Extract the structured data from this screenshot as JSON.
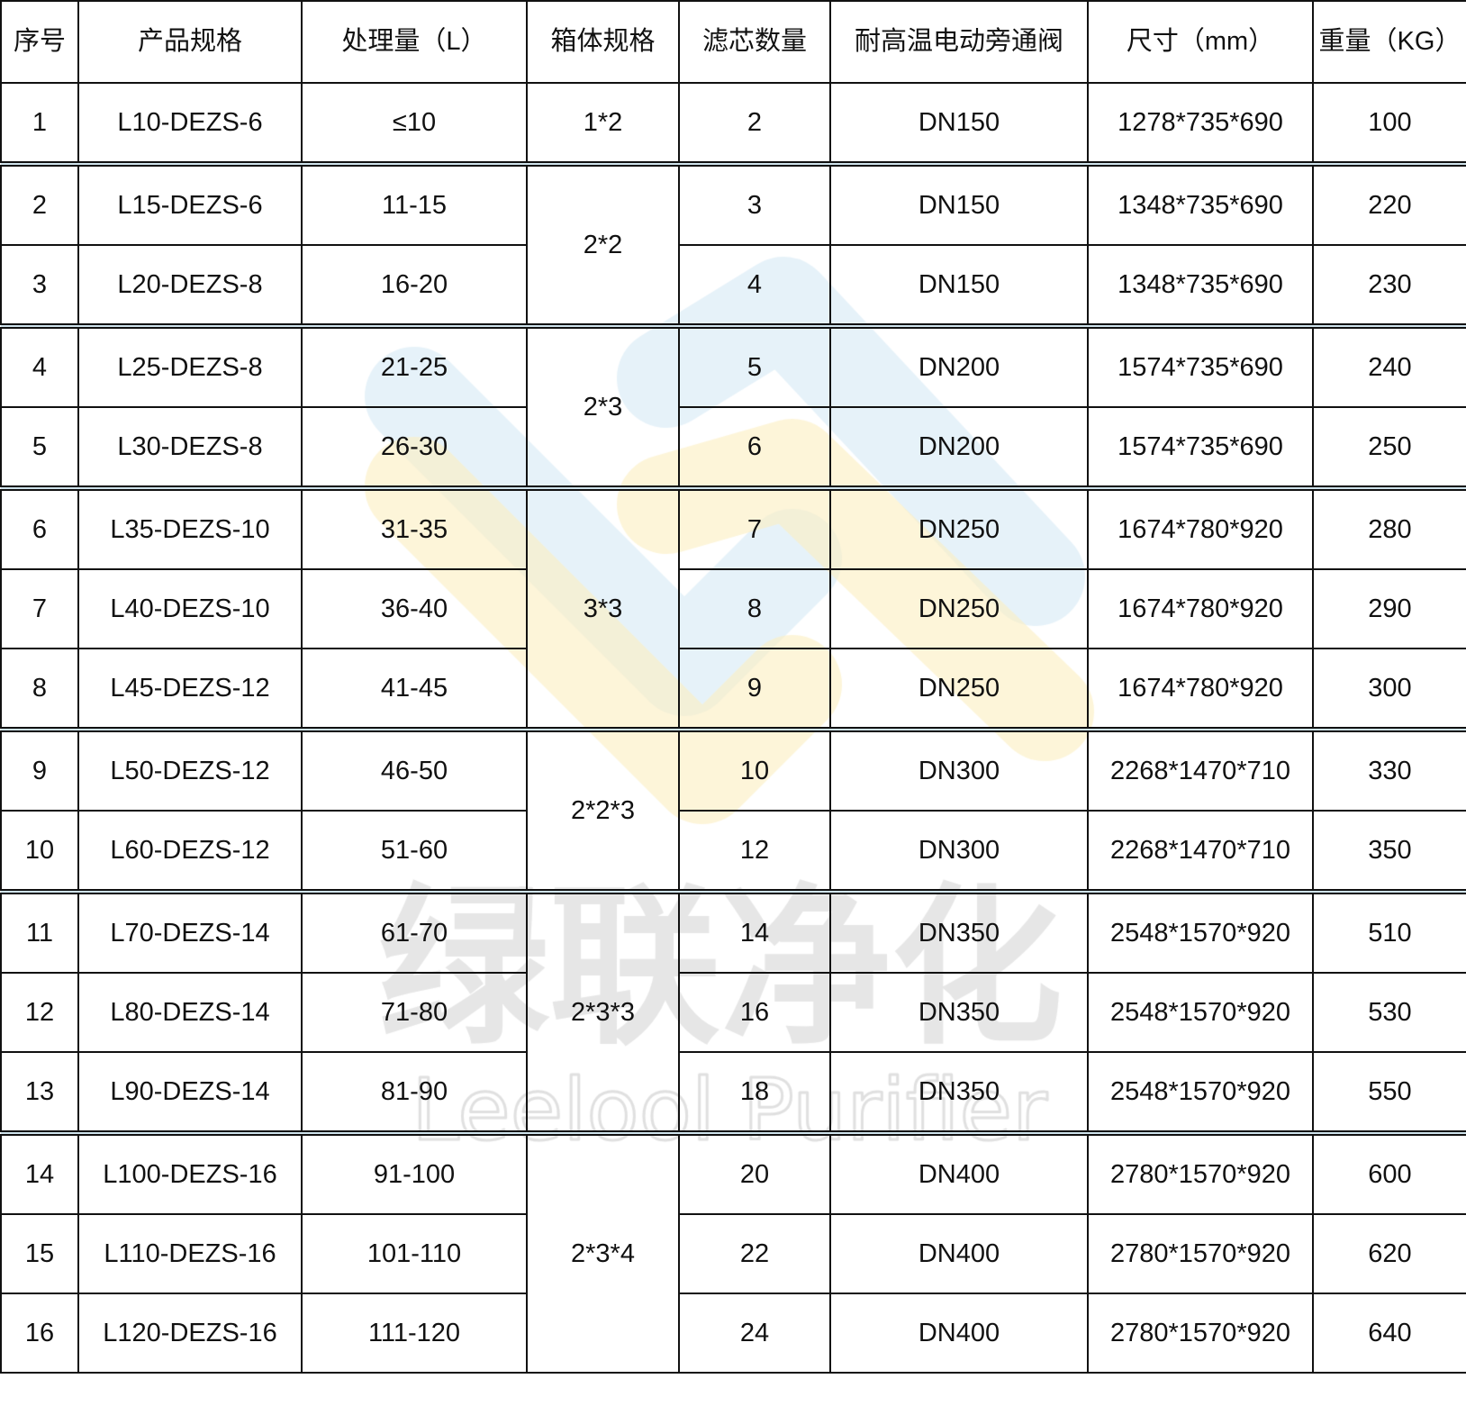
{
  "table": {
    "headers": [
      "序号",
      "产品规格",
      "处理量（L）",
      "箱体规格",
      "滤芯数量",
      "耐高温电动旁通阀",
      "尺寸（mm）",
      "重量（KG）"
    ],
    "groups": [
      {
        "box": "1*2",
        "rows": [
          [
            "1",
            "L10-DEZS-6",
            "≤10",
            "2",
            "DN150",
            "1278*735*690",
            "100"
          ]
        ]
      },
      {
        "box": "2*2",
        "rows": [
          [
            "2",
            "L15-DEZS-6",
            "11-15",
            "3",
            "DN150",
            "1348*735*690",
            "220"
          ],
          [
            "3",
            "L20-DEZS-8",
            "16-20",
            "4",
            "DN150",
            "1348*735*690",
            "230"
          ]
        ]
      },
      {
        "box": "2*3",
        "rows": [
          [
            "4",
            "L25-DEZS-8",
            "21-25",
            "5",
            "DN200",
            "1574*735*690",
            "240"
          ],
          [
            "5",
            "L30-DEZS-8",
            "26-30",
            "6",
            "DN200",
            "1574*735*690",
            "250"
          ]
        ]
      },
      {
        "box": "3*3",
        "rows": [
          [
            "6",
            "L35-DEZS-10",
            "31-35",
            "7",
            "DN250",
            "1674*780*920",
            "280"
          ],
          [
            "7",
            "L40-DEZS-10",
            "36-40",
            "8",
            "DN250",
            "1674*780*920",
            "290"
          ],
          [
            "8",
            "L45-DEZS-12",
            "41-45",
            "9",
            "DN250",
            "1674*780*920",
            "300"
          ]
        ]
      },
      {
        "box": "2*2*3",
        "rows": [
          [
            "9",
            "L50-DEZS-12",
            "46-50",
            "10",
            "DN300",
            "2268*1470*710",
            "330"
          ],
          [
            "10",
            "L60-DEZS-12",
            "51-60",
            "12",
            "DN300",
            "2268*1470*710",
            "350"
          ]
        ]
      },
      {
        "box": "2*3*3",
        "rows": [
          [
            "11",
            "L70-DEZS-14",
            "61-70",
            "14",
            "DN350",
            "2548*1570*920",
            "510"
          ],
          [
            "12",
            "L80-DEZS-14",
            "71-80",
            "16",
            "DN350",
            "2548*1570*920",
            "530"
          ],
          [
            "13",
            "L90-DEZS-14",
            "81-90",
            "18",
            "DN350",
            "2548*1570*920",
            "550"
          ]
        ]
      },
      {
        "box": "2*3*4",
        "rows": [
          [
            "14",
            "L100-DEZS-16",
            "91-100",
            "20",
            "DN400",
            "2780*1570*920",
            "600"
          ],
          [
            "15",
            "L110-DEZS-16",
            "101-110",
            "22",
            "DN400",
            "2780*1570*920",
            "620"
          ],
          [
            "16",
            "L120-DEZS-16",
            "111-120",
            "24",
            "DN400",
            "2780*1570*920",
            "640"
          ]
        ]
      }
    ]
  },
  "watermark": {
    "cn": "绿联净化",
    "en": "Leelool Purifier",
    "colors": {
      "blue": "#d6e9f5",
      "yellow": "#fbefc0",
      "text": "#e6e6e6"
    }
  }
}
